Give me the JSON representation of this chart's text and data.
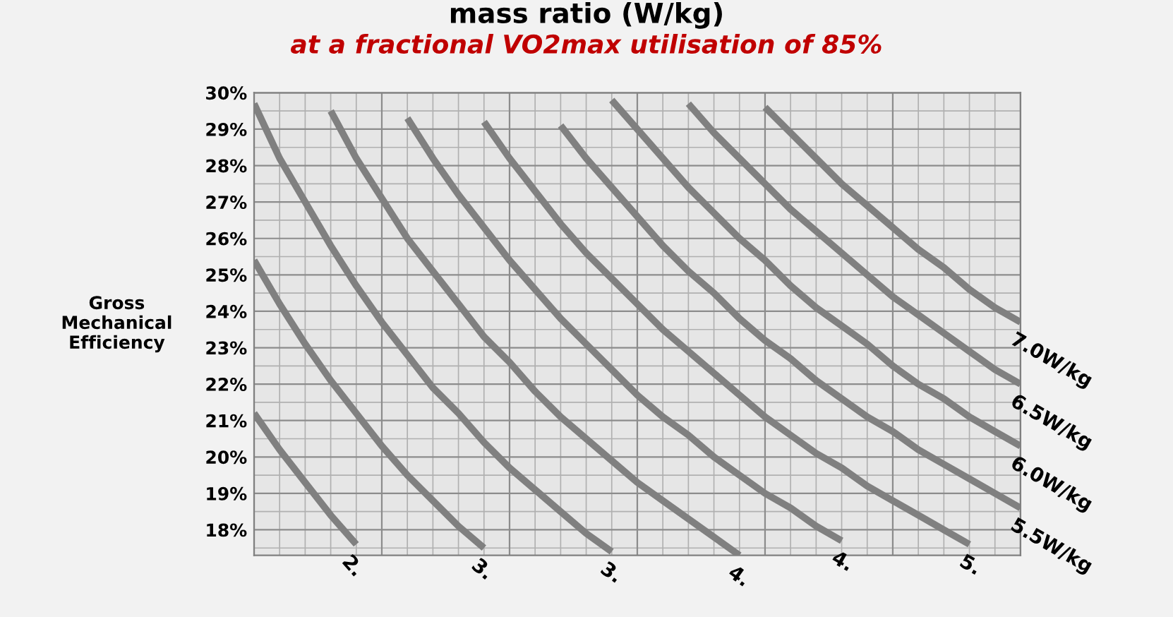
{
  "chart_data": {
    "type": "line",
    "title": "mass ratio (W/kg)",
    "subtitle": "at a fractional VO2max utilisation of 85%",
    "ylabel": "Gross\nMechanical\nEfficiency",
    "categories": [
      null,
      null,
      null,
      null,
      null,
      null,
      null,
      null,
      null,
      null,
      null,
      null,
      null,
      null,
      null,
      null,
      null,
      null,
      null,
      null,
      null,
      null,
      null,
      null,
      null,
      null,
      null,
      null,
      null,
      null,
      null
    ],
    "ylim": [
      17.3,
      30
    ],
    "yticks": [
      {
        "value": 18,
        "label": "18%"
      },
      {
        "value": 19,
        "label": "19%"
      },
      {
        "value": 20,
        "label": "20%"
      },
      {
        "value": 21,
        "label": "21%"
      },
      {
        "value": 22,
        "label": "22%"
      },
      {
        "value": 23,
        "label": "23%"
      },
      {
        "value": 24,
        "label": "24%"
      },
      {
        "value": 25,
        "label": "25%"
      },
      {
        "value": 26,
        "label": "26%"
      },
      {
        "value": 27,
        "label": "27%"
      },
      {
        "value": 28,
        "label": "28%"
      },
      {
        "value": 29,
        "label": "29%"
      },
      {
        "value": 30,
        "label": "30%"
      }
    ],
    "grid": true,
    "marker": "none",
    "line_style": "solid",
    "series": [
      {
        "name": "2.",
        "color": "#808080",
        "values": [
          21.2,
          20.2,
          19.3,
          18.4,
          17.6,
          null,
          null,
          null,
          null,
          null,
          null,
          null,
          null,
          null,
          null,
          null,
          null,
          null,
          null,
          null,
          null,
          null,
          null,
          null,
          null,
          null,
          null,
          null,
          null,
          null,
          null
        ]
      },
      {
        "name": "3.",
        "color": "#808080",
        "values": [
          25.4,
          24.2,
          23.1,
          22.1,
          21.2,
          20.3,
          19.5,
          18.8,
          18.1,
          17.5,
          null,
          null,
          null,
          null,
          null,
          null,
          null,
          null,
          null,
          null,
          null,
          null,
          null,
          null,
          null,
          null,
          null,
          null,
          null,
          null,
          null
        ]
      },
      {
        "name": "3.",
        "color": "#808080",
        "values": [
          29.7,
          28.2,
          27.0,
          25.8,
          24.7,
          23.7,
          22.8,
          21.9,
          21.2,
          20.4,
          19.7,
          19.1,
          18.5,
          17.9,
          17.4,
          null,
          null,
          null,
          null,
          null,
          null,
          null,
          null,
          null,
          null,
          null,
          null,
          null,
          null,
          null,
          null
        ]
      },
      {
        "name": "4.",
        "color": "#808080",
        "values": [
          null,
          null,
          null,
          29.5,
          28.2,
          27.1,
          26.0,
          25.1,
          24.2,
          23.3,
          22.6,
          21.8,
          21.1,
          20.5,
          19.9,
          19.3,
          18.8,
          18.3,
          17.8,
          17.3,
          null,
          null,
          null,
          null,
          null,
          null,
          null,
          null,
          null,
          null,
          null
        ]
      },
      {
        "name": "4.",
        "color": "#808080",
        "values": [
          null,
          null,
          null,
          null,
          null,
          null,
          29.3,
          28.2,
          27.2,
          26.3,
          25.4,
          24.6,
          23.8,
          23.1,
          22.4,
          21.7,
          21.1,
          20.6,
          20.0,
          19.5,
          19.0,
          18.6,
          18.1,
          17.7,
          null,
          null,
          null,
          null,
          null,
          null,
          null
        ]
      },
      {
        "name": "5.",
        "color": "#808080",
        "values": [
          null,
          null,
          null,
          null,
          null,
          null,
          null,
          null,
          null,
          29.2,
          28.2,
          27.3,
          26.4,
          25.6,
          24.9,
          24.2,
          23.5,
          22.9,
          22.3,
          21.7,
          21.1,
          20.6,
          20.1,
          19.7,
          19.2,
          18.8,
          18.4,
          18.0,
          17.6,
          null,
          null
        ]
      },
      {
        "name": "5.5W/kg",
        "color": "#808080",
        "values": [
          null,
          null,
          null,
          null,
          null,
          null,
          null,
          null,
          null,
          null,
          null,
          null,
          29.1,
          28.2,
          27.4,
          26.6,
          25.8,
          25.1,
          24.5,
          23.8,
          23.2,
          22.7,
          22.1,
          21.6,
          21.1,
          20.7,
          20.2,
          19.8,
          19.4,
          19.0,
          18.6
        ]
      },
      {
        "name": "6.0W/kg",
        "color": "#808080",
        "values": [
          null,
          null,
          null,
          null,
          null,
          null,
          null,
          null,
          null,
          null,
          null,
          null,
          null,
          null,
          29.8,
          29.0,
          28.2,
          27.4,
          26.7,
          26.0,
          25.4,
          24.7,
          24.1,
          23.6,
          23.1,
          22.5,
          22.0,
          21.6,
          21.1,
          20.7,
          20.3
        ]
      },
      {
        "name": "6.5W/kg",
        "color": "#808080",
        "values": [
          null,
          null,
          null,
          null,
          null,
          null,
          null,
          null,
          null,
          null,
          null,
          null,
          null,
          null,
          null,
          null,
          null,
          29.7,
          28.9,
          28.2,
          27.5,
          26.8,
          26.2,
          25.6,
          25.0,
          24.4,
          23.9,
          23.4,
          22.9,
          22.4,
          22.0
        ]
      },
      {
        "name": "7.0W/kg",
        "color": "#808080",
        "values": [
          null,
          null,
          null,
          null,
          null,
          null,
          null,
          null,
          null,
          null,
          null,
          null,
          null,
          null,
          null,
          null,
          null,
          null,
          null,
          null,
          29.6,
          28.9,
          28.2,
          27.5,
          26.9,
          26.3,
          25.7,
          25.2,
          24.6,
          24.1,
          23.7
        ]
      }
    ]
  }
}
